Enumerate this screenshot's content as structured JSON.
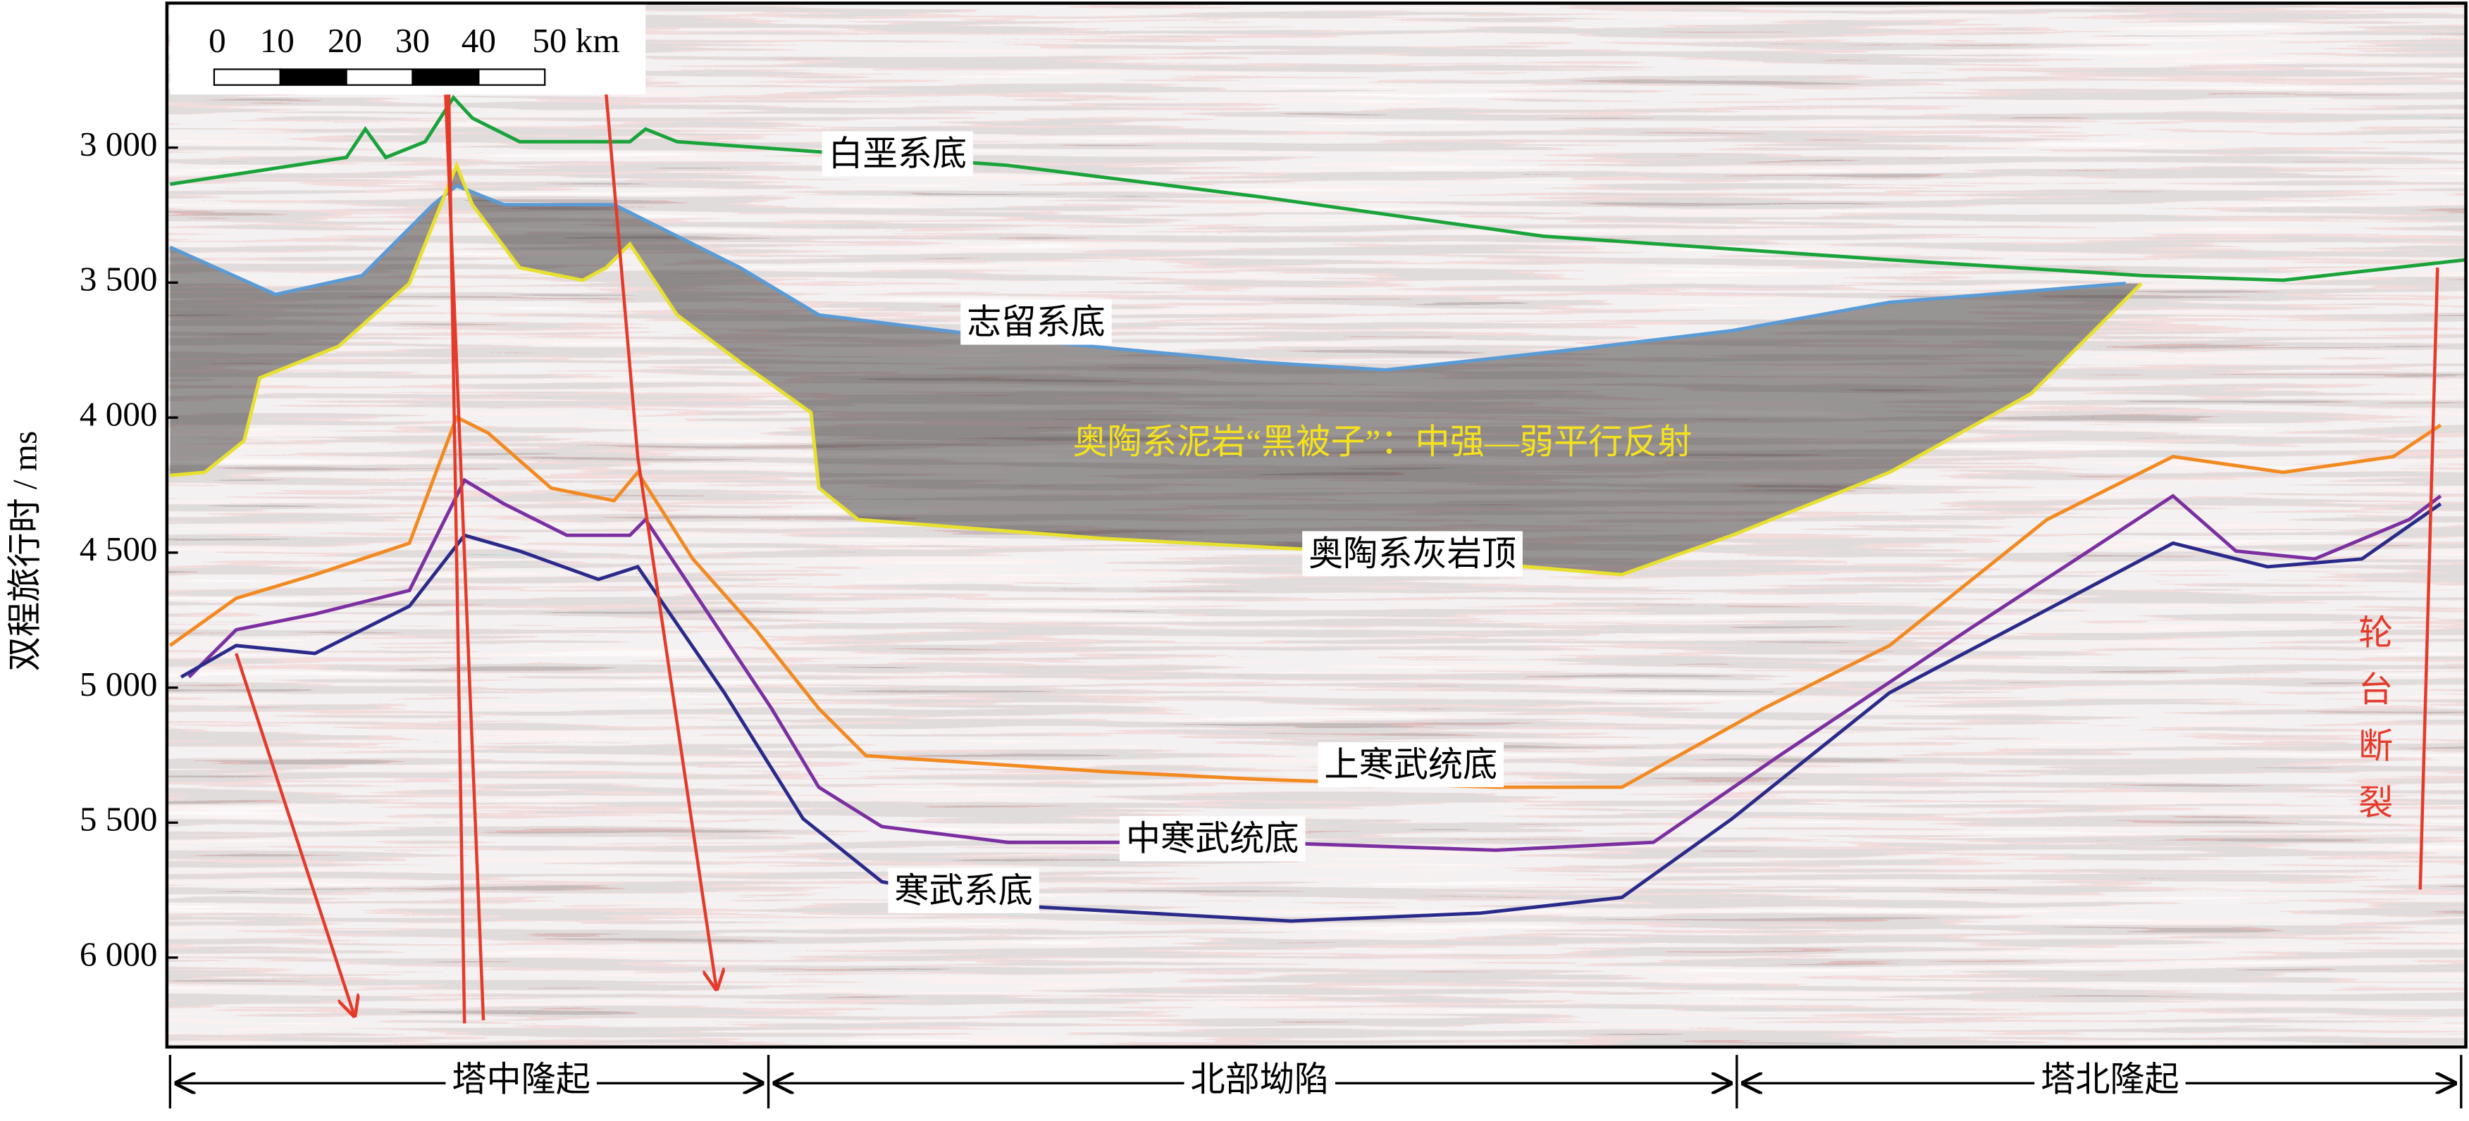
{
  "axis": {
    "label": "双程旅行时 / ms",
    "ylim": [
      2465,
      6331
    ],
    "ticks": [
      {
        "value": 3000,
        "label": "3 000"
      },
      {
        "value": 3500,
        "label": "3 500"
      },
      {
        "value": 4000,
        "label": "4 000"
      },
      {
        "value": 4500,
        "label": "4 500"
      },
      {
        "value": 5000,
        "label": "5 000"
      },
      {
        "value": 5500,
        "label": "5 500"
      },
      {
        "value": 6000,
        "label": "6 000"
      }
    ]
  },
  "scale_bar": {
    "labels": [
      "0",
      "10",
      "20",
      "30",
      "40",
      "50 km"
    ]
  },
  "horizons": {
    "cretaceous_base": "白垩系底",
    "silurian_base": "志留系底",
    "ordovician_mudstone": "奥陶系泥岩“黑被子”：中强—弱平行反射",
    "ordovician_limestone_top": "奥陶系灰岩顶",
    "upper_cambrian_base": "上寒武统底",
    "middle_cambrian_base": "中寒武统底",
    "cambrian_base": "寒武系底"
  },
  "fault": "轮台断裂",
  "zones": [
    "塔中隆起",
    "北部坳陷",
    "塔北隆起"
  ]
}
